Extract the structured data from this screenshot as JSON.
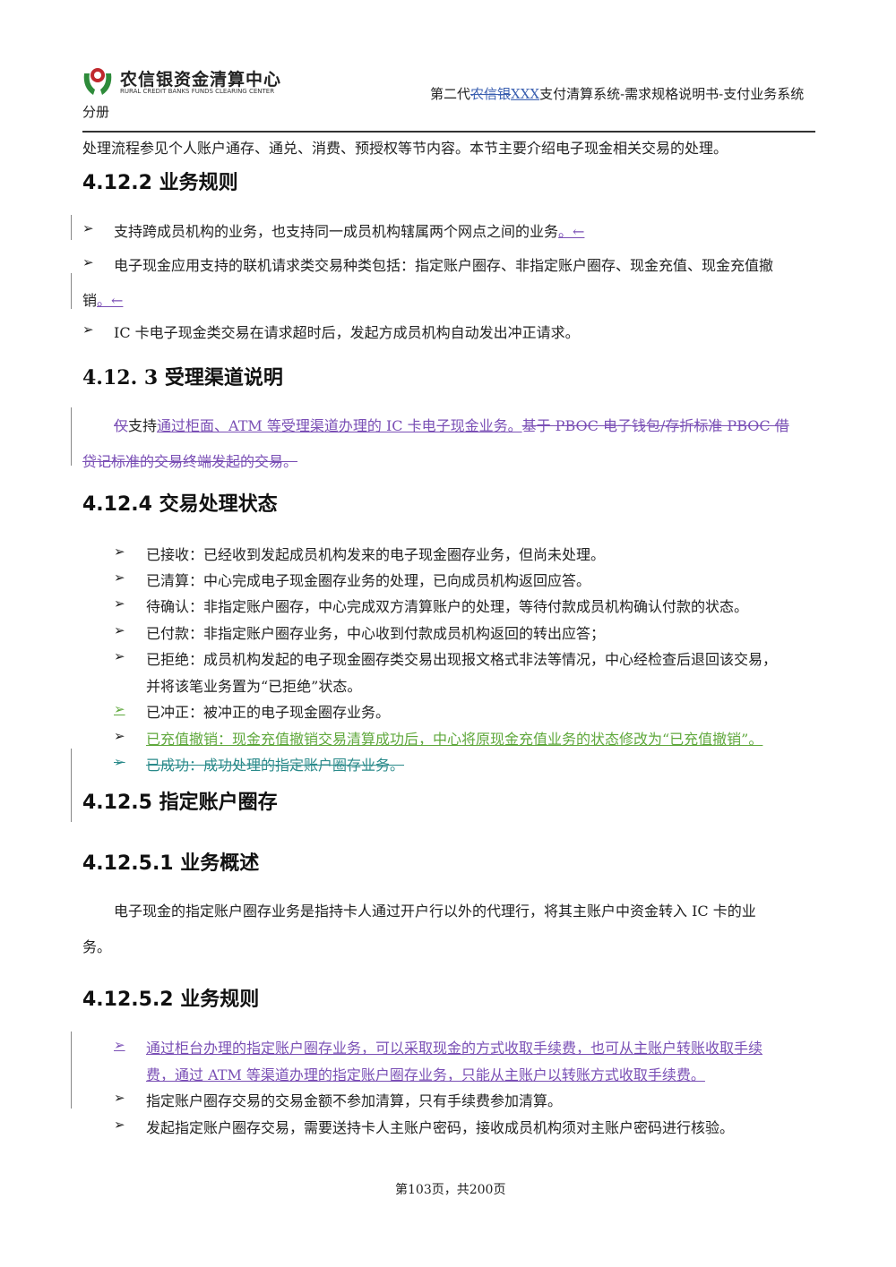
{
  "header": {
    "logo_cn": "农信银资金清算中心",
    "logo_en": "RURAL CREDIT BANKS FUNDS CLEARING CENTER",
    "title_prefix": "第二代",
    "title_deleted": "农信银",
    "title_inserted": "XXX",
    "title_suffix": "支付清算系统-需求规格说明书-支付业务系统",
    "subtitle": "分册"
  },
  "intro": "处理流程参见个人账户通存、通兑、消费、预授权等节内容。本节主要介绍电子现金相关交易的处理。",
  "s4122": {
    "heading": "4.12.2 业务规则",
    "b1": "支持跨成员机构的业务，也支持同一成员机构辖属两个网点之间的业务",
    "b1_mark": "。←",
    "b2_line1": "电子现金应用支持的联机请求类交易种类包括：指定账户圈存、非指定账户圈存、现金充值、现金充值撤",
    "b2_line2": "销",
    "b2_mark": "。←",
    "b3": "IC 卡电子现金类交易在请求超时后，发起方成员机构自动发出冲正请求。"
  },
  "s4123": {
    "heading": "4.12. 3  受理渠道说明",
    "seg_del1": "仅",
    "seg_normal": "支持",
    "seg_ins": "通过柜面、ATM 等受理渠道办理的 IC 卡电子现金业务。",
    "seg_del2": "基于 PBOC  电子钱包/存折标准 PBOC  借",
    "seg_del3": "贷记标准的交易终端发起的交易。"
  },
  "s4124": {
    "heading": "4.12.4 交易处理状态",
    "items": [
      "已接收：已经收到发起成员机构发来的电子现金圈存业务，但尚未处理。",
      "已清算：中心完成电子现金圈存业务的处理，已向成员机构返回应答。",
      "待确认：非指定账户圈存，中心完成双方清算账户的处理，等待付款成员机构确认付款的状态。",
      "已付款：非指定账户圈存业务，中心收到付款成员机构返回的转出应答；",
      "已拒绝：成员机构发起的电子现金圈存类交易出现报文格式非法等情况，中心经检查后退回该交易，",
      "并将该笔业务置为“已拒绝”状态。",
      "已冲正：被冲正的电子现金圈存业务。",
      "已充值撤销：现金充值撤销交易清算成功后，中心将原现金充值业务的状态修改为“已充值撤销”。",
      "已成功：成功处理的指定账户圈存业务。"
    ]
  },
  "s4125": {
    "heading": "4.12.5 指定账户圈存",
    "sub1_heading": "4.12.5.1 业务概述",
    "sub1_line1": "电子现金的指定账户圈存业务是指持卡人通过开户行以外的代理行，将其主账户中资金转入 IC 卡的业",
    "sub1_line2": "务。",
    "sub2_heading": "4.12.5.2 业务规则",
    "rules": [
      "通过柜台办理的指定账户圈存业务，可以采取现金的方式收取手续费，也可从主账户转账收取手续",
      "费，通过 ATM 等渠道办理的指定账户圈存业务，只能从主账户以转账方式收取手续费。",
      "指定账户圈存交易的交易金额不参加清算，只有手续费参加清算。",
      "发起指定账户圈存交易，需要送持卡人主账户密码，接收成员机构须对主账户密码进行核验。"
    ]
  },
  "footer": {
    "page": "第103页，共200页"
  },
  "colors": {
    "insert": "#7a4fb5",
    "green_insert": "#5fa83c",
    "teal_delete": "#2a8a8a"
  },
  "icons": {
    "bullet": "arrow-bullet-icon",
    "logo": "rccc-logo-icon"
  }
}
